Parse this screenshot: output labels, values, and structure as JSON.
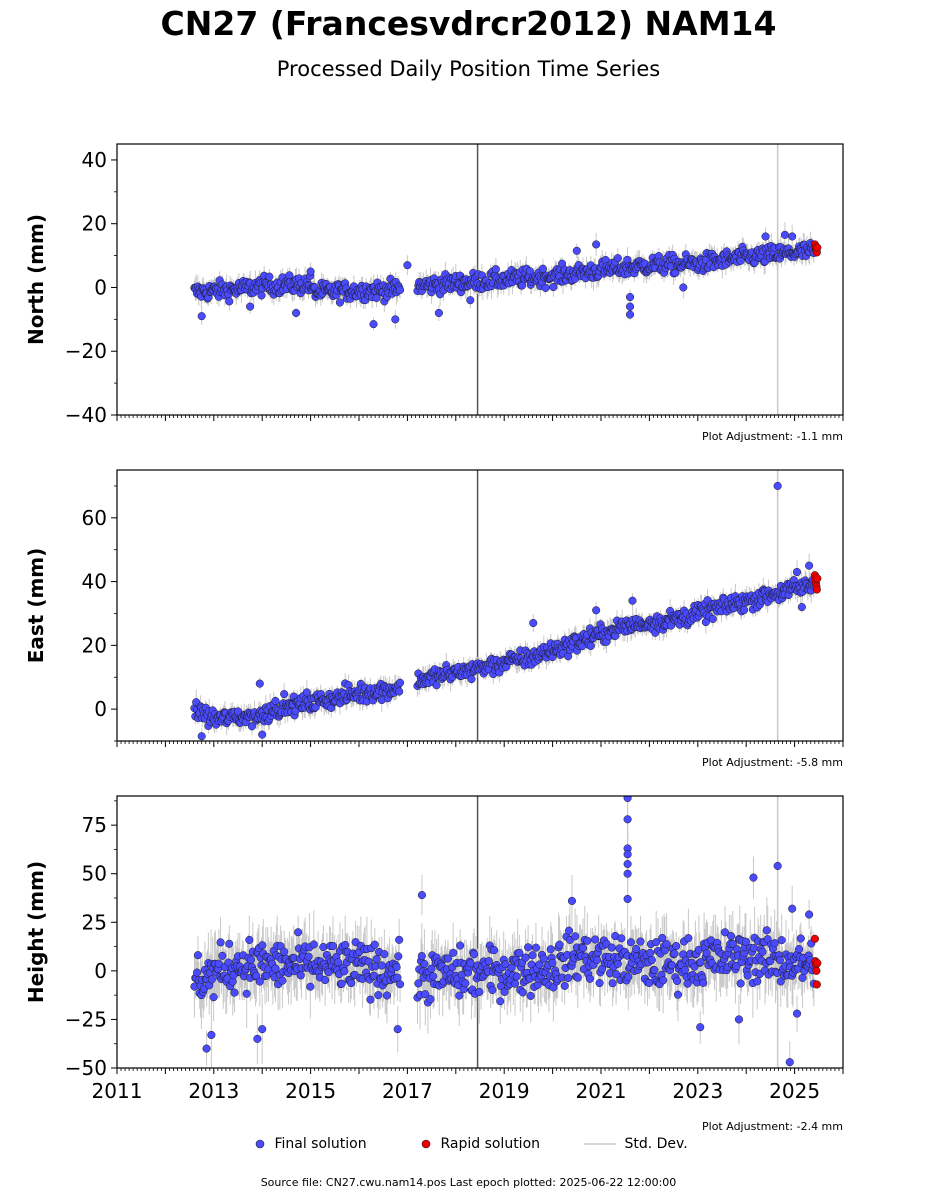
{
  "figure": {
    "title": "CN27 (Francesvdrcr2012) NAM14",
    "subtitle": "Processed Daily Position Time Series",
    "footer": "Source file: CN27.cwu.nam14.pos  Last epoch plotted: 2025-06-22 12:00:00"
  },
  "legend": {
    "final_label": "Final solution",
    "rapid_label": "Rapid solution",
    "std_label": "Std. Dev."
  },
  "colors": {
    "final": "#4a4aff",
    "rapid": "#ee0000",
    "std_dev": "#c8c8c8",
    "vline_dark": "#555555",
    "vline_light": "#c8c8c8"
  },
  "chart_data": [
    {
      "type": "scatter",
      "ylabel": "North (mm)",
      "xlim": [
        2011,
        2026
      ],
      "ylim": [
        -40,
        45
      ],
      "yticks": [
        -40,
        -20,
        0,
        20,
        40
      ],
      "xticks_labeled": false,
      "adjustment": "Plot Adjustment: -1.1 mm",
      "vlines": [
        {
          "x": 2018.45,
          "style": "dark"
        },
        {
          "x": 2024.65,
          "style": "light"
        }
      ],
      "final_trend": [
        {
          "x": 2012.6,
          "y": -1.5
        },
        {
          "x": 2013.5,
          "y": -0.5
        },
        {
          "x": 2014.0,
          "y": 0.5
        },
        {
          "x": 2015.0,
          "y": 1.0
        },
        {
          "x": 2015.05,
          "y": -1.5
        },
        {
          "x": 2016.0,
          "y": -1.0
        },
        {
          "x": 2017.0,
          "y": -0.5
        },
        {
          "x": 2017.2,
          "y": 0.5
        },
        {
          "x": 2018.5,
          "y": 2.0
        },
        {
          "x": 2020.0,
          "y": 3.5
        },
        {
          "x": 2021.0,
          "y": 5.5
        },
        {
          "x": 2022.0,
          "y": 7.0
        },
        {
          "x": 2023.0,
          "y": 7.5
        },
        {
          "x": 2024.0,
          "y": 9.5
        },
        {
          "x": 2025.4,
          "y": 11.5
        }
      ],
      "gaps": [
        [
          2016.85,
          2017.2
        ]
      ],
      "noise": 2.0,
      "outliers": [
        {
          "x": 2012.75,
          "y": -9
        },
        {
          "x": 2013.75,
          "y": -6
        },
        {
          "x": 2014.7,
          "y": -8
        },
        {
          "x": 2015.0,
          "y": 5
        },
        {
          "x": 2016.3,
          "y": -11.5
        },
        {
          "x": 2016.75,
          "y": -10
        },
        {
          "x": 2017.0,
          "y": 7
        },
        {
          "x": 2017.65,
          "y": -8
        },
        {
          "x": 2018.3,
          "y": -4
        },
        {
          "x": 2020.5,
          "y": 11.5
        },
        {
          "x": 2020.9,
          "y": 13.5
        },
        {
          "x": 2021.6,
          "y": -8.5
        },
        {
          "x": 2021.6,
          "y": -6
        },
        {
          "x": 2021.6,
          "y": -3
        },
        {
          "x": 2022.7,
          "y": 0
        },
        {
          "x": 2024.4,
          "y": 16
        },
        {
          "x": 2024.8,
          "y": 16.5
        },
        {
          "x": 2024.95,
          "y": 16
        }
      ],
      "rapid": [
        {
          "x": 2025.42,
          "y": 13.5
        },
        {
          "x": 2025.43,
          "y": 12.5
        },
        {
          "x": 2025.44,
          "y": 12
        },
        {
          "x": 2025.45,
          "y": 11.5
        },
        {
          "x": 2025.46,
          "y": 11
        },
        {
          "x": 2025.47,
          "y": 12.5
        }
      ]
    },
    {
      "type": "scatter",
      "ylabel": "East (mm)",
      "xlim": [
        2011,
        2026
      ],
      "ylim": [
        -10,
        75
      ],
      "yticks": [
        0,
        20,
        40,
        60
      ],
      "xticks_labeled": false,
      "adjustment": "Plot Adjustment: -5.8 mm",
      "vlines": [
        {
          "x": 2018.45,
          "style": "dark"
        },
        {
          "x": 2024.65,
          "style": "light"
        }
      ],
      "final_trend": [
        {
          "x": 2012.6,
          "y": 0
        },
        {
          "x": 2013.0,
          "y": -3
        },
        {
          "x": 2014.0,
          "y": -2
        },
        {
          "x": 2014.2,
          "y": 0
        },
        {
          "x": 2015.0,
          "y": 2
        },
        {
          "x": 2016.0,
          "y": 5
        },
        {
          "x": 2017.0,
          "y": 7
        },
        {
          "x": 2017.2,
          "y": 9
        },
        {
          "x": 2018.5,
          "y": 13
        },
        {
          "x": 2019.5,
          "y": 16
        },
        {
          "x": 2020.5,
          "y": 21
        },
        {
          "x": 2021.5,
          "y": 26
        },
        {
          "x": 2022.5,
          "y": 28
        },
        {
          "x": 2023.5,
          "y": 32
        },
        {
          "x": 2024.5,
          "y": 36
        },
        {
          "x": 2025.4,
          "y": 39
        }
      ],
      "gaps": [
        [
          2016.85,
          2017.2
        ]
      ],
      "noise": 2.0,
      "outliers": [
        {
          "x": 2012.75,
          "y": -8.5
        },
        {
          "x": 2013.95,
          "y": 8
        },
        {
          "x": 2014.0,
          "y": -8
        },
        {
          "x": 2019.6,
          "y": 27
        },
        {
          "x": 2020.9,
          "y": 31
        },
        {
          "x": 2021.65,
          "y": 34
        },
        {
          "x": 2024.65,
          "y": 70
        },
        {
          "x": 2025.05,
          "y": 43
        },
        {
          "x": 2025.15,
          "y": 32
        },
        {
          "x": 2025.3,
          "y": 45
        }
      ],
      "rapid": [
        {
          "x": 2025.42,
          "y": 42
        },
        {
          "x": 2025.43,
          "y": 40.5
        },
        {
          "x": 2025.44,
          "y": 39.5
        },
        {
          "x": 2025.45,
          "y": 38.5
        },
        {
          "x": 2025.46,
          "y": 37.5
        },
        {
          "x": 2025.47,
          "y": 41
        }
      ]
    },
    {
      "type": "scatter",
      "ylabel": "Height (mm)",
      "xlim": [
        2011,
        2026
      ],
      "ylim": [
        -50,
        90
      ],
      "yticks": [
        -50,
        -25,
        0,
        25,
        50,
        75
      ],
      "xticks_labeled": true,
      "xticks": [
        2011,
        2013,
        2015,
        2017,
        2019,
        2021,
        2023,
        2025
      ],
      "adjustment": "Plot Adjustment: -2.4 mm",
      "vlines": [
        {
          "x": 2018.45,
          "style": "dark"
        },
        {
          "x": 2024.65,
          "style": "light"
        }
      ],
      "final_trend": [
        {
          "x": 2012.6,
          "y": -5
        },
        {
          "x": 2013.5,
          "y": 3
        },
        {
          "x": 2014.5,
          "y": 3
        },
        {
          "x": 2016.0,
          "y": 2
        },
        {
          "x": 2016.9,
          "y": 0
        },
        {
          "x": 2017.2,
          "y": -3
        },
        {
          "x": 2018.5,
          "y": -1
        },
        {
          "x": 2020.0,
          "y": 2
        },
        {
          "x": 2020.5,
          "y": 8
        },
        {
          "x": 2022.0,
          "y": 3
        },
        {
          "x": 2023.0,
          "y": 5
        },
        {
          "x": 2024.0,
          "y": 8
        },
        {
          "x": 2025.4,
          "y": 3
        }
      ],
      "gaps": [
        [
          2016.85,
          2017.2
        ]
      ],
      "noise": 9.0,
      "outliers": [
        {
          "x": 2012.85,
          "y": -40
        },
        {
          "x": 2012.95,
          "y": -33
        },
        {
          "x": 2013.9,
          "y": -35
        },
        {
          "x": 2014.0,
          "y": -30
        },
        {
          "x": 2016.8,
          "y": -30
        },
        {
          "x": 2017.3,
          "y": 39
        },
        {
          "x": 2020.4,
          "y": 36
        },
        {
          "x": 2021.55,
          "y": 89
        },
        {
          "x": 2021.55,
          "y": 78
        },
        {
          "x": 2021.55,
          "y": 63
        },
        {
          "x": 2021.55,
          "y": 60
        },
        {
          "x": 2021.55,
          "y": 55
        },
        {
          "x": 2021.55,
          "y": 50
        },
        {
          "x": 2021.55,
          "y": 37
        },
        {
          "x": 2023.05,
          "y": -29
        },
        {
          "x": 2023.85,
          "y": -25
        },
        {
          "x": 2024.15,
          "y": 48
        },
        {
          "x": 2024.65,
          "y": 54
        },
        {
          "x": 2024.95,
          "y": 32
        },
        {
          "x": 2024.9,
          "y": -47
        },
        {
          "x": 2025.05,
          "y": -22
        },
        {
          "x": 2025.3,
          "y": 29
        }
      ],
      "rapid": [
        {
          "x": 2025.42,
          "y": 16.5
        },
        {
          "x": 2025.43,
          "y": 5
        },
        {
          "x": 2025.44,
          "y": 3
        },
        {
          "x": 2025.45,
          "y": 0
        },
        {
          "x": 2025.46,
          "y": -7
        },
        {
          "x": 2025.47,
          "y": 4
        }
      ]
    }
  ]
}
